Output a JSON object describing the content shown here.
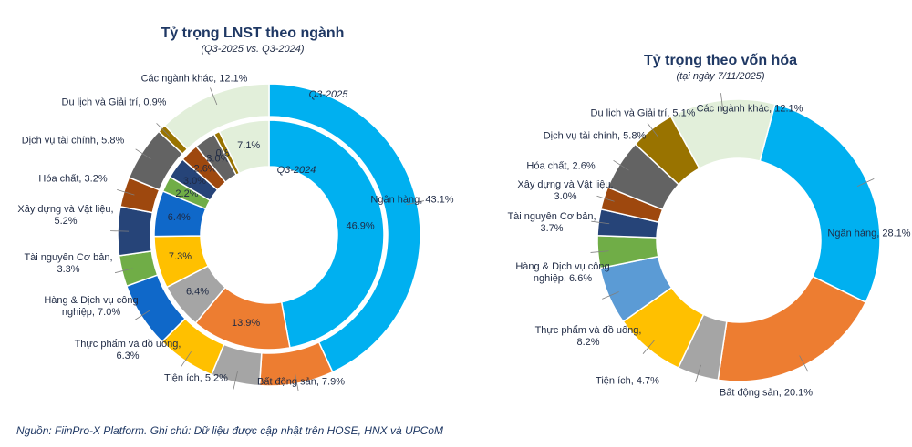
{
  "chart_data": [
    {
      "type": "donut",
      "title": "Tỷ trọng LNST theo ngành",
      "subtitle": "(Q3-2025 vs. Q3-2024)",
      "labels": [
        "Ngân hàng, 43.1%",
        "Bất động sản, 7.9%",
        "Tiện ích, 5.2%",
        "Thực phẩm và đồ uống, 6.3%",
        "Hàng & Dịch vụ công nghiệp, 7.0%",
        "Tài nguyên Cơ bản, 3.3%",
        "Xây dựng và Vật liệu, 5.2%",
        "Hóa chất, 3.2%",
        "Dịch vụ tài chính, 5.8%",
        "Du lịch và Giải trí, 0.9%",
        "Các ngành khác, 12.1%"
      ],
      "colors": [
        "#00b0f0",
        "#ed7d31",
        "#a5a5a5",
        "#ffc000",
        "#0f68c9",
        "#70ad47",
        "#264478",
        "#9e480e",
        "#636363",
        "#997300",
        "#e2efda"
      ],
      "series": [
        {
          "name": "Q3-2025",
          "values": [
            43.1,
            7.9,
            5.2,
            6.3,
            7.0,
            3.3,
            5.2,
            3.2,
            5.8,
            0.9,
            12.1
          ]
        },
        {
          "name": "Q3-2024",
          "values": [
            46.9,
            13.9,
            6.4,
            7.3,
            6.4,
            2.2,
            3.0,
            2.6,
            3.0,
            0.8,
            7.1
          ],
          "value_labels": [
            "46.9%",
            "13.9%",
            "6.4%",
            "7.3%",
            "6.4%",
            "2.2%",
            "3.0%",
            "2.6%",
            "3.0%",
            "0.8%",
            "7.1%"
          ]
        }
      ]
    },
    {
      "type": "donut",
      "title": "Tỷ trọng theo vốn hóa",
      "subtitle": "(tại ngày 7/11/2025)",
      "labels": [
        "Ngân hàng, 28.1%",
        "Bất động sản, 20.1%",
        "Tiện ích, 4.7%",
        "Thực phẩm và đồ uống, 8.2%",
        "Hàng & Dịch vụ công nghiệp, 6.6%",
        "Tài nguyên Cơ bản, 3.7%",
        "Xây dựng và Vật liệu, 3.0%",
        "Hóa chất, 2.6%",
        "Dịch vụ tài chính, 5.8%",
        "Du lịch và Giải trí, 5.1%",
        "Các ngành khác, 12.1%"
      ],
      "colors": [
        "#00b0f0",
        "#ed7d31",
        "#a5a5a5",
        "#ffc000",
        "#5b9bd5",
        "#70ad47",
        "#264478",
        "#9e480e",
        "#636363",
        "#997300",
        "#e2efda"
      ],
      "series": [
        {
          "values": [
            28.1,
            20.1,
            4.7,
            8.2,
            6.6,
            3.7,
            3.0,
            2.6,
            5.8,
            5.1,
            12.1
          ]
        }
      ]
    }
  ],
  "source": "Nguồn: FiinPro-X Platform. Ghi chú: Dữ liệu được cập nhật trên HOSE, HNX và UPCoM"
}
